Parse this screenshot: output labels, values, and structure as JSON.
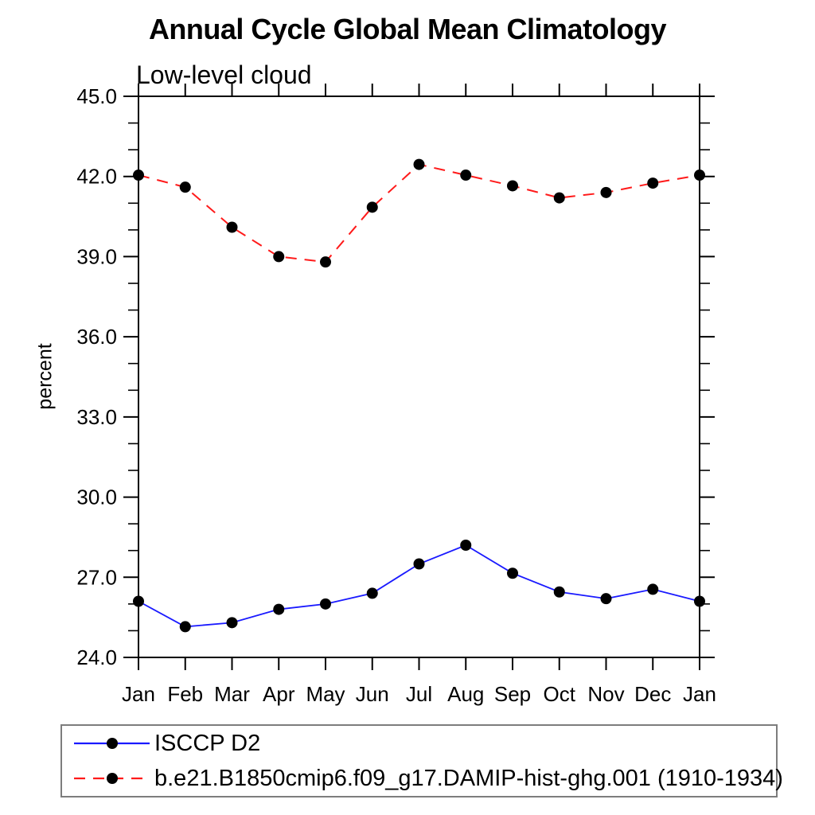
{
  "chart_data": {
    "type": "line",
    "title": "Annual Cycle Global Mean Climatology",
    "subtitle": "Low-level cloud",
    "xlabel": "",
    "ylabel": "percent",
    "categories": [
      "Jan",
      "Feb",
      "Mar",
      "Apr",
      "May",
      "Jun",
      "Jul",
      "Aug",
      "Sep",
      "Oct",
      "Nov",
      "Dec",
      "Jan"
    ],
    "ylim": [
      24.0,
      45.0
    ],
    "ytick_major": [
      24,
      27,
      30,
      33,
      36,
      39,
      42,
      45
    ],
    "ytick_labels": [
      "24.0",
      "27.0",
      "30.0",
      "33.0",
      "36.0",
      "39.0",
      "42.0",
      "45.0"
    ],
    "ytick_minor_step": 1,
    "grid": false,
    "legend_position": "bottom-left",
    "axis_color": "#000000",
    "series": [
      {
        "name": "ISCCP D2",
        "color": "#1a1aff",
        "line_style": "solid",
        "line_width": 1.8,
        "marker": "filled-circle",
        "marker_color": "#000000",
        "values": [
          26.1,
          25.15,
          25.3,
          25.8,
          26.0,
          26.4,
          27.5,
          28.2,
          27.15,
          26.45,
          26.2,
          26.55,
          26.1
        ]
      },
      {
        "name": "b.e21.B1850cmip6.f09_g17.DAMIP-hist-ghg.001 (1910-1934)",
        "color": "#ff1a1a",
        "line_style": "dashed",
        "line_width": 2,
        "marker": "filled-circle",
        "marker_color": "#000000",
        "values": [
          42.05,
          41.6,
          40.1,
          39.0,
          38.8,
          40.85,
          42.45,
          42.05,
          41.65,
          41.2,
          41.4,
          41.75,
          42.05
        ]
      }
    ]
  }
}
